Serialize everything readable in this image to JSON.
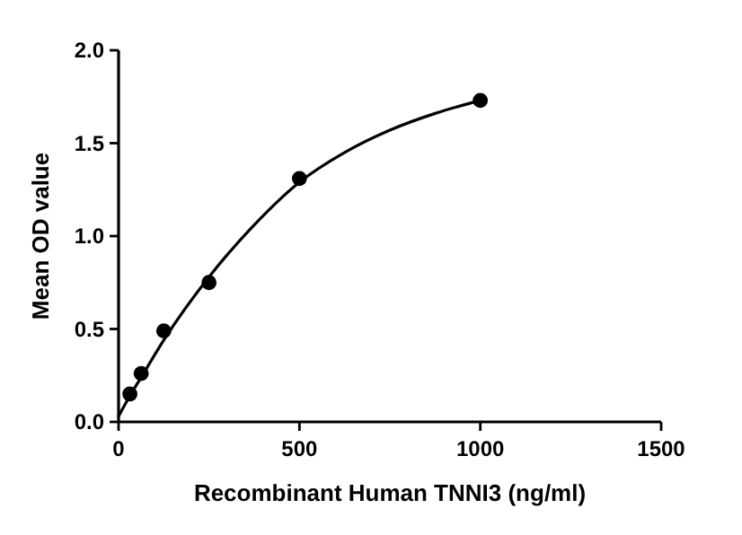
{
  "chart_data": {
    "type": "scatter",
    "xlabel": "Recombinant Human TNNI3 (ng/ml)",
    "ylabel": "Mean OD value",
    "xlim": [
      0,
      1500
    ],
    "xticks": [
      0,
      500,
      1000,
      1500
    ],
    "ylim": [
      0,
      2.0
    ],
    "yticks": [
      {
        "value": 0,
        "label": "0.0"
      },
      {
        "value": 0.5,
        "label": "0.5"
      },
      {
        "value": 1,
        "label": "1.0"
      },
      {
        "value": 1.5,
        "label": "1.5"
      },
      {
        "value": 2,
        "label": "2.0"
      }
    ],
    "grid": false,
    "marker": "circle",
    "series": [
      {
        "color": "#000000",
        "x": [
          31.25,
          62.5,
          125,
          250,
          500,
          1000
        ],
        "values": [
          0.15,
          0.26,
          0.49,
          0.75,
          1.31,
          1.73
        ]
      },
      {
        "type": "line",
        "color": "#000000",
        "marker": "none",
        "line_style": "solid",
        "x": [
          0,
          31.25,
          62.5,
          125,
          250,
          375,
          500,
          625,
          750,
          875,
          1000
        ],
        "values": [
          0.03,
          0.14,
          0.24,
          0.44,
          0.78,
          1.06,
          1.29,
          1.45,
          1.57,
          1.66,
          1.73
        ]
      }
    ]
  }
}
